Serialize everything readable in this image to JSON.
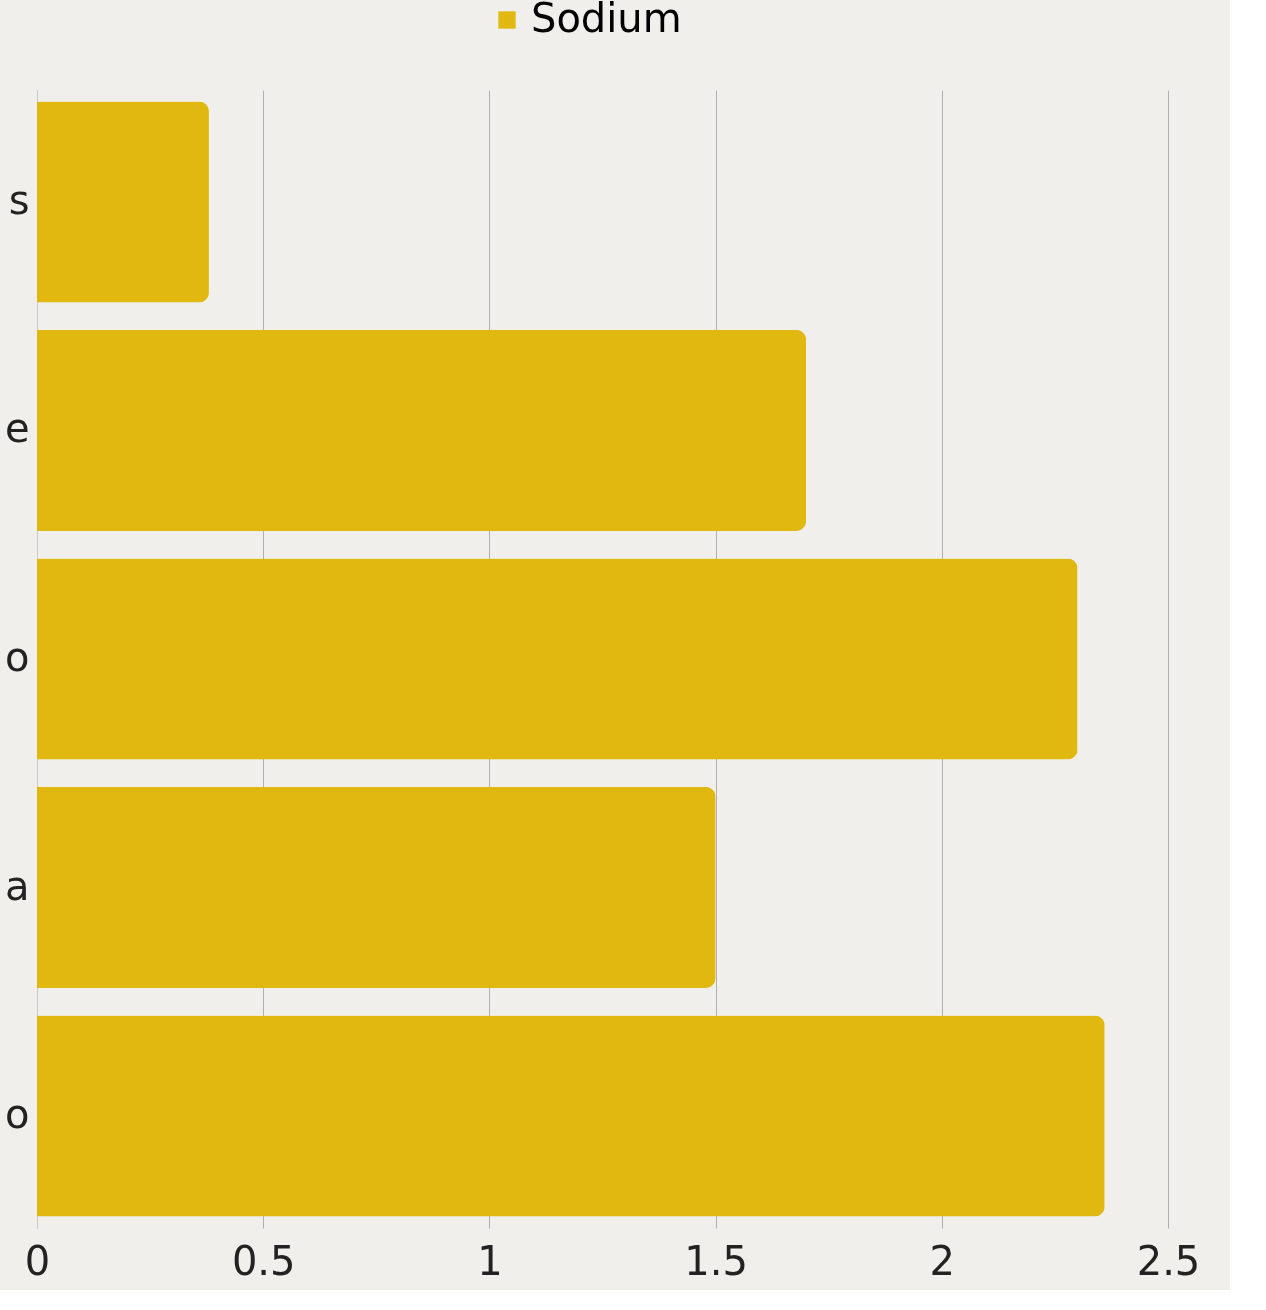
{
  "chart_data": {
    "type": "bar",
    "orientation": "horizontal",
    "categories": [
      "s",
      "e",
      "o",
      "a",
      "o"
    ],
    "series": [
      {
        "name": "Sodium",
        "color": "#e0b80f",
        "values": [
          0.38,
          1.7,
          2.3,
          1.5,
          2.36
        ]
      }
    ],
    "xlim": [
      0,
      2.5
    ],
    "xticks": [
      0,
      0.5,
      1,
      1.5,
      2,
      2.5
    ],
    "grid": "x",
    "legend": "top"
  }
}
